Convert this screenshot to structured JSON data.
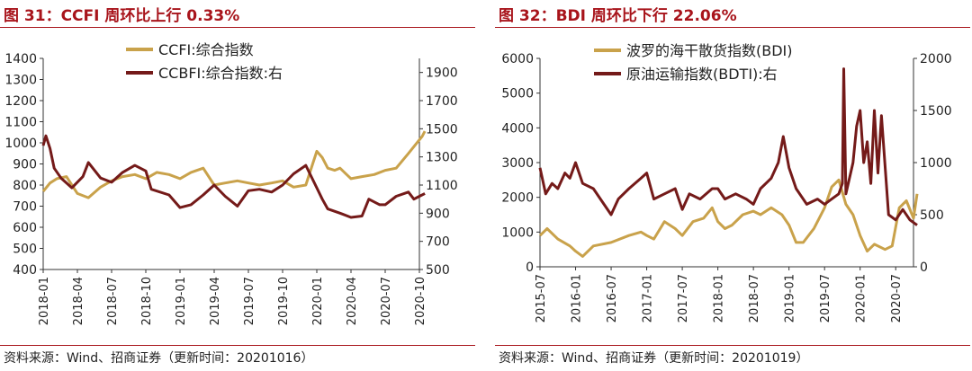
{
  "charts": [
    {
      "title": "图 31：CCFI 周环比上行 0.33%",
      "source": "资料来源：Wind、招商证券（更新时间：20201016）"
    },
    {
      "title": "图 32：BDI 周环比下行 22.06%",
      "source": "资料来源：Wind、招商证券（更新时间：20201019）"
    }
  ],
  "chart_data": [
    {
      "type": "line",
      "x_tick_labels": [
        "2018-01",
        "2018-04",
        "2018-07",
        "2018-10",
        "2019-01",
        "2019-04",
        "2019-07",
        "2019-10",
        "2020-01",
        "2020-04",
        "2020-07",
        "2020-10"
      ],
      "x_range": [
        "2018-01",
        "2020-10"
      ],
      "ylim": [
        400,
        1400
      ],
      "y_ticks": [
        400,
        500,
        600,
        700,
        800,
        900,
        1000,
        1100,
        1200,
        1300,
        1400
      ],
      "y2lim": [
        500,
        2000
      ],
      "y2_ticks": [
        500,
        700,
        900,
        1100,
        1300,
        1500,
        1700,
        1900
      ],
      "grid": false,
      "legend_position": "top-center",
      "series": [
        {
          "name": "CCFI:综合指数",
          "axis": "left",
          "color": "#c9a24b",
          "x": [
            2018.0,
            2018.05,
            2018.1,
            2018.17,
            2018.25,
            2018.33,
            2018.42,
            2018.5,
            2018.58,
            2018.67,
            2018.75,
            2018.83,
            2018.92,
            2019.0,
            2019.08,
            2019.17,
            2019.25,
            2019.33,
            2019.42,
            2019.5,
            2019.58,
            2019.67,
            2019.75,
            2019.83,
            2019.92,
            2019.97,
            2020.0,
            2020.04,
            2020.08,
            2020.13,
            2020.17,
            2020.25,
            2020.33,
            2020.42,
            2020.5,
            2020.58,
            2020.67,
            2020.72,
            2020.77,
            2020.79
          ],
          "values": [
            770,
            810,
            830,
            840,
            760,
            740,
            790,
            820,
            840,
            850,
            830,
            860,
            850,
            830,
            860,
            880,
            800,
            810,
            820,
            810,
            800,
            810,
            820,
            790,
            800,
            900,
            960,
            930,
            880,
            870,
            880,
            830,
            840,
            850,
            870,
            880,
            950,
            990,
            1030,
            1055
          ]
        },
        {
          "name": "CCBFI:综合指数:右",
          "axis": "right",
          "color": "#741a19",
          "x": [
            2018.0,
            2018.02,
            2018.05,
            2018.08,
            2018.13,
            2018.21,
            2018.29,
            2018.33,
            2018.42,
            2018.5,
            2018.58,
            2018.67,
            2018.75,
            2018.79,
            2018.92,
            2019.0,
            2019.08,
            2019.17,
            2019.25,
            2019.33,
            2019.42,
            2019.5,
            2019.58,
            2019.67,
            2019.75,
            2019.83,
            2019.92,
            2020.0,
            2020.04,
            2020.08,
            2020.17,
            2020.25,
            2020.33,
            2020.38,
            2020.42,
            2020.46,
            2020.5,
            2020.58,
            2020.67,
            2020.71,
            2020.75,
            2020.79
          ],
          "values": [
            1380,
            1450,
            1360,
            1220,
            1150,
            1080,
            1160,
            1260,
            1150,
            1120,
            1190,
            1240,
            1200,
            1070,
            1030,
            940,
            960,
            1030,
            1100,
            1020,
            950,
            1060,
            1070,
            1050,
            1100,
            1180,
            1240,
            1080,
            1000,
            930,
            900,
            870,
            880,
            1000,
            980,
            960,
            960,
            1020,
            1050,
            1000,
            1020,
            1040
          ]
        }
      ]
    },
    {
      "type": "line",
      "x_tick_labels": [
        "2015-07",
        "2016-01",
        "2016-07",
        "2017-01",
        "2017-07",
        "2018-01",
        "2018-07",
        "2019-01",
        "2019-07",
        "2020-01",
        "2020-07"
      ],
      "x_range": [
        "2015-07",
        "2020-10"
      ],
      "ylim": [
        0,
        6000
      ],
      "y_ticks": [
        0,
        1000,
        2000,
        3000,
        4000,
        5000,
        6000
      ],
      "y2lim": [
        0,
        2000
      ],
      "y2_ticks": [
        0,
        500,
        1000,
        1500,
        2000
      ],
      "grid": false,
      "legend_position": "top-center",
      "series": [
        {
          "name": "波罗的海干散货指数(BDI)",
          "axis": "left",
          "color": "#c9a24b",
          "x": [
            2015.5,
            2015.6,
            2015.75,
            2015.92,
            2016.0,
            2016.1,
            2016.25,
            2016.5,
            2016.75,
            2016.92,
            2017.0,
            2017.1,
            2017.25,
            2017.4,
            2017.5,
            2017.65,
            2017.8,
            2017.92,
            2018.0,
            2018.1,
            2018.2,
            2018.35,
            2018.5,
            2018.6,
            2018.75,
            2018.9,
            2019.0,
            2019.1,
            2019.2,
            2019.35,
            2019.5,
            2019.6,
            2019.7,
            2019.8,
            2019.9,
            2020.0,
            2020.1,
            2020.2,
            2020.35,
            2020.45,
            2020.55,
            2020.65,
            2020.75,
            2020.8
          ],
          "values": [
            900,
            1100,
            800,
            600,
            450,
            300,
            600,
            700,
            900,
            1000,
            900,
            800,
            1300,
            1100,
            900,
            1300,
            1400,
            1700,
            1300,
            1100,
            1200,
            1500,
            1600,
            1500,
            1700,
            1500,
            1200,
            700,
            700,
            1100,
            1700,
            2300,
            2500,
            1800,
            1500,
            900,
            450,
            650,
            500,
            600,
            1700,
            1900,
            1400,
            2100
          ]
        },
        {
          "name": "原油运输指数(BDTI):右",
          "axis": "right",
          "color": "#741a19",
          "x": [
            2015.5,
            2015.58,
            2015.67,
            2015.75,
            2015.85,
            2015.92,
            2016.0,
            2016.1,
            2016.25,
            2016.4,
            2016.5,
            2016.6,
            2016.75,
            2016.92,
            2017.0,
            2017.1,
            2017.25,
            2017.4,
            2017.5,
            2017.6,
            2017.75,
            2017.92,
            2018.0,
            2018.1,
            2018.25,
            2018.4,
            2018.5,
            2018.6,
            2018.75,
            2018.85,
            2018.92,
            2019.0,
            2019.1,
            2019.25,
            2019.4,
            2019.5,
            2019.6,
            2019.7,
            2019.75,
            2019.77,
            2019.8,
            2019.9,
            2019.95,
            2020.0,
            2020.05,
            2020.1,
            2020.15,
            2020.2,
            2020.25,
            2020.3,
            2020.4,
            2020.5,
            2020.6,
            2020.7,
            2020.8
          ],
          "values": [
            950,
            700,
            800,
            750,
            900,
            850,
            1000,
            800,
            750,
            600,
            500,
            650,
            750,
            850,
            900,
            650,
            700,
            750,
            550,
            700,
            650,
            750,
            750,
            650,
            700,
            650,
            600,
            750,
            850,
            1000,
            1250,
            950,
            750,
            600,
            650,
            600,
            650,
            700,
            800,
            1900,
            700,
            1000,
            1350,
            1500,
            1000,
            1200,
            800,
            1500,
            900,
            1450,
            500,
            450,
            550,
            450,
            400
          ]
        }
      ]
    }
  ]
}
